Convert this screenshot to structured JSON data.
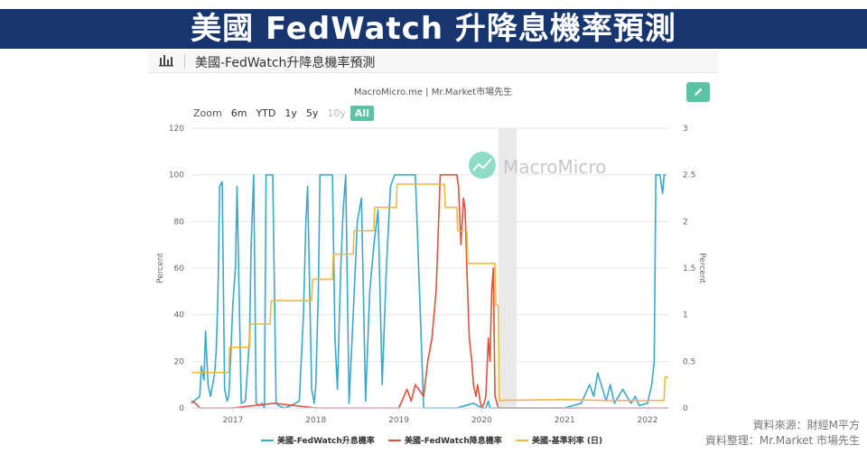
{
  "banner": {
    "title": "美國 FedWatch 升降息機率預測"
  },
  "panel": {
    "title": "美國-FedWatch升降息機率預測",
    "source": "MacroMicro.me | Mr.Market市場先生",
    "watermark": "MacroMicro"
  },
  "zoom": {
    "label": "Zoom",
    "buttons": [
      "6m",
      "YTD",
      "1y",
      "5y",
      "10y",
      "All"
    ],
    "disabled": [
      "10y"
    ],
    "active": "All"
  },
  "credits": {
    "line1": "資料來源：財經M平方",
    "line2": "資料整理：Mr.Market 市場先生"
  },
  "colors": {
    "hike": "#3aa8cc",
    "cut": "#e0513c",
    "rate": "#f2b93b",
    "accent": "#5bc3a4",
    "banner": "#17356e"
  },
  "chart_data": {
    "type": "line",
    "xlabel": "",
    "ylabel": "Percent",
    "ylabel_right": "Percent",
    "ylim": [
      0,
      120
    ],
    "ylim_right": [
      0,
      3
    ],
    "yticks": [
      0,
      20,
      40,
      60,
      80,
      100,
      120
    ],
    "yticks_right": [
      "0",
      "0.5",
      "1",
      "1.5",
      "2",
      "2.5",
      "3"
    ],
    "xticks": [
      "2017",
      "2018",
      "2019",
      "2020",
      "2021",
      "2022"
    ],
    "xlim": [
      2016.5,
      2022.25
    ],
    "shaded_band": [
      2020.2,
      2020.42
    ],
    "legend_position": "bottom",
    "series": [
      {
        "name": "美國-FedWatch升息機率",
        "axis": "left",
        "x": [
          2016.5,
          2016.6,
          2016.62,
          2016.65,
          2016.67,
          2016.7,
          2016.73,
          2016.78,
          2016.8,
          2016.82,
          2016.84,
          2016.87,
          2016.9,
          2016.93,
          2016.95,
          2016.97,
          2017.0,
          2017.03,
          2017.05,
          2017.1,
          2017.15,
          2017.2,
          2017.22,
          2017.25,
          2017.28,
          2017.32,
          2017.35,
          2017.38,
          2017.4,
          2017.42,
          2017.45,
          2017.48,
          2017.52,
          2017.55,
          2017.62,
          2017.7,
          2017.8,
          2017.85,
          2017.88,
          2017.9,
          2017.95,
          2017.98,
          2018.0,
          2018.03,
          2018.05,
          2018.1,
          2018.15,
          2018.2,
          2018.23,
          2018.26,
          2018.3,
          2018.33,
          2018.36,
          2018.4,
          2018.45,
          2018.5,
          2018.55,
          2018.6,
          2018.65,
          2018.7,
          2018.75,
          2018.8,
          2018.85,
          2018.9,
          2018.95,
          2019.0,
          2019.1,
          2019.2,
          2019.3,
          2019.5,
          2019.7,
          2019.9,
          2020.0,
          2020.05,
          2020.08,
          2020.1,
          2020.2,
          2020.5,
          2020.8,
          2021.0,
          2021.2,
          2021.3,
          2021.35,
          2021.4,
          2021.5,
          2021.55,
          2021.6,
          2021.7,
          2021.8,
          2021.85,
          2021.9,
          2022.0,
          2022.05,
          2022.08,
          2022.1,
          2022.12,
          2022.15,
          2022.18,
          2022.2,
          2022.22
        ],
        "y": [
          2,
          5,
          18,
          12,
          33,
          10,
          5,
          15,
          25,
          50,
          95,
          97,
          8,
          3,
          5,
          20,
          45,
          60,
          95,
          2,
          3,
          30,
          70,
          100,
          2,
          1,
          2,
          0,
          100,
          100,
          100,
          100,
          2,
          1,
          0,
          1,
          3,
          40,
          80,
          95,
          8,
          2,
          10,
          50,
          100,
          100,
          100,
          100,
          30,
          8,
          60,
          85,
          100,
          2,
          40,
          80,
          90,
          3,
          50,
          70,
          85,
          10,
          60,
          95,
          100,
          100,
          100,
          100,
          0,
          0,
          0,
          2,
          0,
          0,
          3,
          0,
          0,
          0,
          0,
          0,
          2,
          10,
          5,
          15,
          3,
          10,
          2,
          8,
          2,
          5,
          1,
          2,
          10,
          20,
          100,
          100,
          100,
          92,
          100,
          100
        ]
      },
      {
        "name": "美國-FedWatch降息機率",
        "axis": "left",
        "x": [
          2016.5,
          2016.55,
          2016.6,
          2017.0,
          2017.5,
          2018.0,
          2018.5,
          2019.0,
          2019.1,
          2019.15,
          2019.2,
          2019.3,
          2019.35,
          2019.4,
          2019.45,
          2019.5,
          2019.52,
          2019.55,
          2019.58,
          2019.62,
          2019.65,
          2019.7,
          2019.72,
          2019.75,
          2019.78,
          2019.8,
          2019.82,
          2019.85,
          2019.88,
          2019.9,
          2019.93,
          2019.95,
          2019.98,
          2020.0,
          2020.03,
          2020.05,
          2020.08,
          2020.1,
          2020.12,
          2020.14,
          2020.16,
          2020.2,
          2020.4,
          2020.8,
          2021.5,
          2022.0,
          2022.25
        ],
        "y": [
          3,
          2,
          0,
          0,
          2,
          0,
          0,
          0,
          8,
          3,
          10,
          5,
          20,
          30,
          50,
          100,
          100,
          100,
          100,
          100,
          100,
          100,
          95,
          70,
          90,
          85,
          60,
          30,
          20,
          10,
          5,
          10,
          3,
          0,
          2,
          5,
          30,
          20,
          50,
          60,
          5,
          0,
          0,
          0,
          0,
          0,
          0
        ]
      },
      {
        "name": "美國-基準利率 (日)",
        "axis": "right",
        "x": [
          2016.5,
          2016.95,
          2016.96,
          2017.2,
          2017.21,
          2017.45,
          2017.46,
          2017.95,
          2017.96,
          2018.2,
          2018.21,
          2018.45,
          2018.46,
          2018.7,
          2018.71,
          2018.97,
          2018.98,
          2019.55,
          2019.56,
          2019.7,
          2019.71,
          2019.82,
          2019.83,
          2020.16,
          2020.17,
          2020.2,
          2020.21,
          2021.0,
          2021.5,
          2022.2,
          2022.21,
          2022.25
        ],
        "y": [
          0.38,
          0.38,
          0.65,
          0.65,
          0.9,
          0.9,
          1.15,
          1.15,
          1.38,
          1.38,
          1.65,
          1.65,
          1.9,
          1.9,
          2.15,
          2.15,
          2.4,
          2.4,
          2.15,
          2.15,
          1.9,
          1.9,
          1.55,
          1.55,
          1.1,
          1.1,
          0.08,
          0.09,
          0.08,
          0.08,
          0.33,
          0.33
        ]
      }
    ]
  }
}
